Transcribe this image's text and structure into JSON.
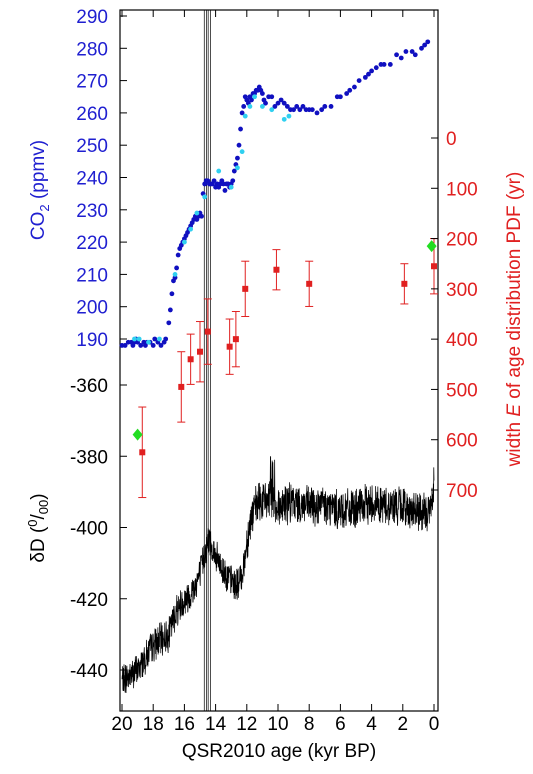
{
  "chart_data": {
    "type": "scatter",
    "x_axis": {
      "label": "QSR2010 age (kyr BP)",
      "range": [
        20,
        0
      ],
      "ticks": [
        20,
        18,
        16,
        14,
        12,
        10,
        8,
        6,
        4,
        2,
        0
      ],
      "tick_labels": [
        "20",
        "18",
        "16",
        "14",
        "12",
        "10",
        "8",
        "6",
        "4",
        "2",
        "0"
      ]
    },
    "co2_axis": {
      "label_main": "CO",
      "label_sub": "2",
      "label_rest": " (ppmv)",
      "range": [
        187,
        291
      ],
      "ticks": [
        190,
        200,
        210,
        220,
        230,
        240,
        250,
        260,
        270,
        280,
        290
      ],
      "tick_labels": [
        "190",
        "200",
        "210",
        "220",
        "230",
        "240",
        "250",
        "260",
        "270",
        "280",
        "290"
      ],
      "color": "#1f1fd0"
    },
    "dD_axis": {
      "label_main": "δD (",
      "label_sup": "0",
      "label_sep": "/",
      "label_sub": "00",
      "label_end": ")",
      "range": [
        -452,
        -341
      ],
      "ticks": [
        -360,
        -380,
        -400,
        -420,
        -440
      ],
      "tick_labels": [
        "-360",
        "-380",
        "-400",
        "-420",
        "-440"
      ],
      "color": "#000000"
    },
    "width_axis": {
      "label_pre": "width ",
      "label_var": "E",
      "label_post": " of age distribution PDF (yr)",
      "range": [
        0,
        700
      ],
      "ticks": [
        0,
        100,
        200,
        300,
        400,
        500,
        600,
        700
      ],
      "tick_labels": [
        "0",
        "100",
        "200",
        "300",
        "400",
        "500",
        "600",
        "700"
      ],
      "color": "#e02020"
    },
    "vertical_lines": [
      14.65,
      14.4
    ],
    "co2_dark": {
      "color": "#1010c0",
      "x": [
        20.0,
        19.8,
        19.6,
        19.4,
        19.3,
        19.2,
        19.1,
        19.0,
        18.8,
        18.6,
        18.5,
        18.4,
        18.2,
        18.0,
        17.9,
        17.7,
        17.5,
        17.3,
        17.2,
        17.0,
        16.9,
        16.8,
        16.7,
        16.6,
        16.5,
        16.4,
        16.3,
        16.2,
        16.1,
        16.0,
        15.9,
        15.8,
        15.7,
        15.6,
        15.5,
        15.4,
        15.3,
        15.2,
        15.1,
        15.0,
        14.9,
        14.8,
        14.7,
        14.6,
        14.5,
        14.4,
        14.3,
        14.2,
        14.1,
        14.0,
        13.9,
        13.8,
        13.7,
        13.6,
        13.5,
        13.4,
        13.3,
        13.2,
        13.1,
        13.0,
        12.9,
        12.8,
        12.7,
        12.6,
        12.5,
        12.4,
        12.3,
        12.2,
        12.1,
        12.0,
        11.9,
        11.8,
        11.7,
        11.6,
        11.5,
        11.4,
        11.3,
        11.2,
        11.1,
        11.0,
        10.9,
        10.8,
        10.6,
        10.4,
        10.2,
        10.0,
        9.8,
        9.6,
        9.4,
        9.2,
        9.0,
        8.8,
        8.6,
        8.4,
        8.2,
        8.0,
        7.8,
        7.5,
        7.2,
        7.0,
        6.6,
        6.2,
        6.0,
        5.6,
        5.4,
        5.1,
        4.8,
        4.4,
        4.2,
        4.0,
        3.7,
        3.4,
        3.2,
        2.8,
        2.4,
        2.1,
        1.8,
        1.4,
        1.2,
        0.8,
        0.6,
        0.4
      ],
      "y": [
        188,
        188,
        189,
        189,
        188,
        189,
        190,
        189,
        188,
        189,
        188,
        189,
        189,
        188,
        190,
        189,
        188,
        189,
        190,
        195,
        199,
        204,
        208,
        209,
        212,
        216,
        218,
        219,
        220,
        221,
        222,
        223,
        224,
        225,
        226,
        227,
        228,
        227,
        228,
        229,
        228,
        235,
        238,
        239,
        239,
        238,
        238,
        238,
        239,
        237,
        238,
        237,
        238,
        239,
        238,
        236,
        238,
        238,
        237,
        238,
        239,
        242,
        244,
        246,
        250,
        255,
        260,
        262,
        265,
        264,
        263,
        265,
        264,
        266,
        266,
        267,
        267,
        268,
        267,
        266,
        264,
        263,
        265,
        265,
        262,
        263,
        264,
        263,
        262,
        261,
        261,
        262,
        261,
        262,
        261,
        261,
        261,
        260,
        261,
        262,
        262,
        265,
        265,
        266,
        267,
        268,
        270,
        271,
        272,
        273,
        274,
        275,
        275,
        275,
        278,
        277,
        279,
        279,
        278,
        280,
        281,
        282
      ]
    },
    "co2_light": {
      "color": "#30d0f0",
      "x": [
        19.2,
        18.9,
        18.3,
        17.6,
        16.6,
        16.0,
        15.6,
        15.2,
        14.7,
        13.8,
        13.0,
        12.6,
        12.3,
        12.1,
        11.8,
        11.5,
        11.0,
        10.4,
        9.6,
        9.3
      ],
      "y": [
        190,
        190,
        189,
        190,
        210,
        220,
        224,
        229,
        234,
        242,
        237,
        243,
        248,
        259,
        262,
        265,
        262,
        261,
        258,
        259
      ]
    },
    "e_points": {
      "color": "#e02020",
      "x": [
        18.7,
        16.2,
        15.6,
        15.0,
        14.5,
        13.1,
        12.7,
        12.1,
        10.1,
        8.0,
        1.9,
        0.0
      ],
      "y": [
        625,
        495,
        440,
        425,
        385,
        415,
        400,
        300,
        262,
        290,
        290,
        255
      ],
      "err": [
        90,
        70,
        50,
        60,
        65,
        55,
        55,
        55,
        40,
        45,
        40,
        55
      ]
    },
    "green_points": {
      "color": "#22dd22",
      "x": [
        19.0,
        0.15
      ],
      "y": [
        590,
        215
      ]
    }
  }
}
